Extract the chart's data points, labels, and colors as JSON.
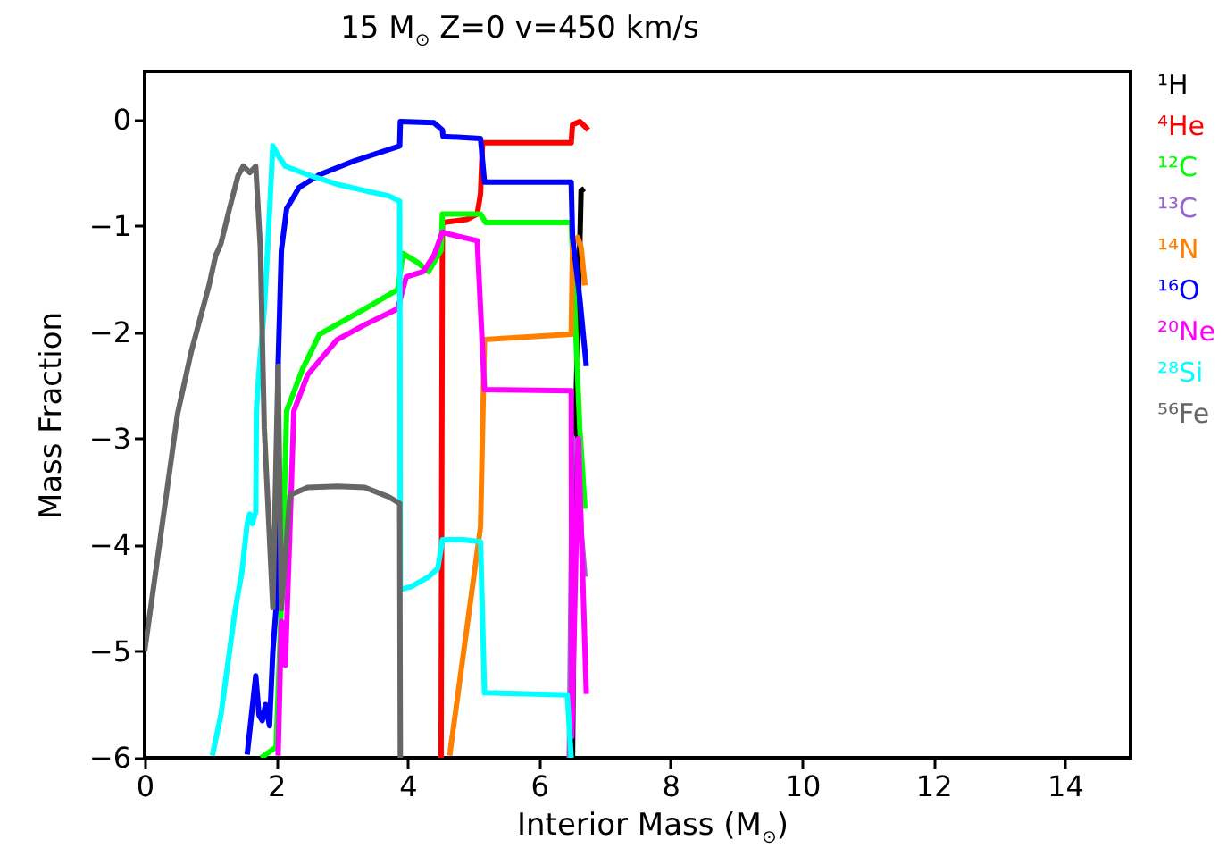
{
  "chart_data": {
    "type": "line",
    "title": "15 M$_{⊙}$ Z=0  v=450 km/s",
    "xlabel": "Interior Mass (M$_{⊙}$)",
    "ylabel": "Mass Fraction",
    "xlim": [
      0,
      15
    ],
    "ylim": [
      -6,
      0.45
    ],
    "xticks": [
      0,
      2,
      4,
      6,
      8,
      10,
      12,
      14
    ],
    "yticks": [
      -6,
      -5,
      -4,
      -3,
      -2,
      -1,
      0
    ],
    "legend": "right",
    "grid": false,
    "series": [
      {
        "name": "¹H",
        "color": "#000000",
        "x": [
          6.51,
          6.55,
          6.62,
          6.64,
          6.69
        ],
        "values": [
          -6.0,
          -3.0,
          -1.2,
          -0.67,
          -0.65
        ]
      },
      {
        "name": "⁴He",
        "color": "#ff0000",
        "x": [
          4.51,
          4.53,
          4.9,
          5.06,
          5.11,
          5.14,
          6.49,
          6.51,
          6.62,
          6.75
        ],
        "values": [
          -6.0,
          -0.97,
          -0.94,
          -0.89,
          -0.7,
          -0.22,
          -0.22,
          -0.05,
          -0.02,
          -0.1
        ]
      },
      {
        "name": "¹²C",
        "color": "#00ff00",
        "x": [
          1.77,
          2.0,
          2.08,
          2.16,
          2.4,
          2.66,
          3.35,
          3.85,
          3.93,
          4.14,
          4.32,
          4.51,
          4.53,
          5.11,
          5.19,
          6.49,
          6.62,
          6.7
        ],
        "values": [
          -6.0,
          -5.9,
          -4.54,
          -2.74,
          -2.35,
          -2.02,
          -1.78,
          -1.6,
          -1.26,
          -1.34,
          -1.43,
          -1.23,
          -0.89,
          -0.89,
          -0.97,
          -0.97,
          -2.9,
          -3.66
        ]
      },
      {
        "name": "¹³C",
        "color": "#9966cc",
        "x": [
          6.46,
          6.51,
          6.59,
          6.64,
          6.7
        ],
        "values": [
          -6.0,
          -2.99,
          -3.1,
          -3.87,
          -4.3
        ]
      },
      {
        "name": "¹⁴N",
        "color": "#ff8000",
        "x": [
          4.64,
          5.11,
          5.17,
          6.49,
          6.51,
          6.59,
          6.64,
          6.7
        ],
        "values": [
          -5.98,
          -3.83,
          -2.07,
          -2.02,
          -1.18,
          -1.11,
          -1.2,
          -1.56
        ]
      },
      {
        "name": "¹⁶O",
        "color": "#0000ff",
        "x": [
          1.56,
          1.69,
          1.74,
          1.79,
          1.84,
          1.9,
          1.95,
          2.0,
          2.03,
          2.08,
          2.16,
          2.35,
          2.66,
          3.19,
          3.88,
          3.89,
          4.4,
          4.53,
          4.54,
          5.11,
          5.17,
          6.49,
          6.51,
          6.62,
          6.72
        ],
        "values": [
          -5.97,
          -5.23,
          -5.6,
          -5.65,
          -5.5,
          -5.7,
          -5.0,
          -4.59,
          -2.32,
          -1.23,
          -0.84,
          -0.64,
          -0.52,
          -0.39,
          -0.25,
          -0.02,
          -0.03,
          -0.1,
          -0.16,
          -0.18,
          -0.59,
          -0.59,
          -1.11,
          -1.68,
          -2.32
        ]
      },
      {
        "name": "²⁰Ne",
        "color": "#ff00ff",
        "x": [
          2.03,
          2.08,
          2.14,
          2.27,
          2.48,
          2.93,
          3.35,
          3.85,
          3.98,
          4.24,
          4.4,
          4.53,
          4.64,
          5.06,
          5.17,
          6.49,
          6.5,
          6.6,
          6.72
        ],
        "values": [
          -5.98,
          -4.72,
          -5.13,
          -2.74,
          -2.4,
          -2.07,
          -1.93,
          -1.78,
          -1.48,
          -1.43,
          -1.28,
          -1.06,
          -1.08,
          -1.14,
          -2.54,
          -2.55,
          -5.8,
          -3.0,
          -5.4
        ]
      },
      {
        "name": "²⁸Si",
        "color": "#00ffff",
        "x": [
          1.03,
          1.16,
          1.37,
          1.48,
          1.56,
          1.6,
          1.64,
          1.69,
          1.7,
          1.74,
          1.82,
          1.87,
          1.95,
          2.03,
          2.14,
          2.48,
          2.93,
          3.35,
          3.72,
          3.88,
          3.89,
          4.06,
          4.32,
          4.46,
          4.53,
          4.85,
          5.11,
          5.17,
          6.43,
          6.49
        ],
        "values": [
          -5.98,
          -5.6,
          -4.64,
          -4.25,
          -3.8,
          -3.71,
          -3.8,
          -3.69,
          -2.74,
          -2.37,
          -1.78,
          -1.23,
          -0.25,
          -0.34,
          -0.44,
          -0.52,
          -0.61,
          -0.67,
          -0.72,
          -0.77,
          -4.42,
          -4.39,
          -4.3,
          -4.22,
          -3.95,
          -3.95,
          -3.97,
          -5.39,
          -5.41,
          -6.0
        ]
      },
      {
        "name": "⁵⁶Fe",
        "color": "#666666",
        "x": [
          0.0,
          0.5,
          0.71,
          0.98,
          1.08,
          1.16,
          1.29,
          1.42,
          1.5,
          1.6,
          1.69,
          1.76,
          1.82,
          1.95,
          2.03,
          2.08,
          2.21,
          2.48,
          2.93,
          3.35,
          3.72,
          3.88,
          3.89
        ],
        "values": [
          -5.0,
          -2.77,
          -2.18,
          -1.56,
          -1.28,
          -1.17,
          -0.84,
          -0.53,
          -0.44,
          -0.5,
          -0.44,
          -1.2,
          -2.9,
          -4.59,
          -2.32,
          -4.6,
          -3.53,
          -3.46,
          -3.45,
          -3.46,
          -3.55,
          -3.61,
          -6.0
        ]
      }
    ]
  }
}
